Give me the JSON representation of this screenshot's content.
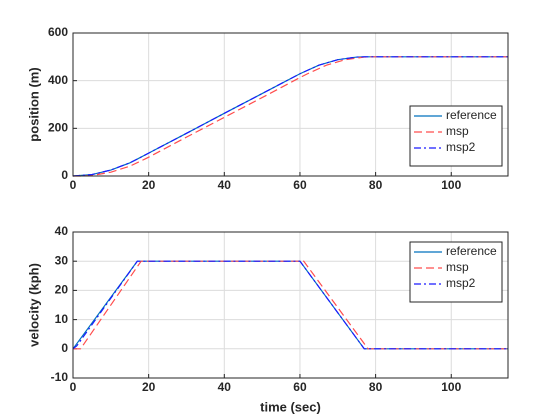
{
  "chart_data": [
    {
      "type": "line",
      "ylabel": "position (m)",
      "xlim": [
        0,
        115
      ],
      "ylim": [
        0,
        600
      ],
      "xticks": [
        0,
        20,
        40,
        60,
        80,
        100
      ],
      "yticks": [
        0,
        200,
        400,
        600
      ],
      "grid": true,
      "legend": "lower right",
      "series": [
        {
          "name": "reference",
          "color": "#0072bd",
          "style": "solid",
          "x": [
            0,
            5,
            10,
            15,
            17,
            20,
            30,
            40,
            50,
            60,
            65,
            70,
            75,
            77,
            115
          ],
          "values": [
            0,
            6,
            25,
            55,
            71,
            96,
            179,
            263,
            346,
            429,
            465,
            488,
            499,
            500,
            500
          ]
        },
        {
          "name": "msp",
          "color": "#ff4d4d",
          "style": "dashed",
          "x": [
            0,
            2,
            5,
            10,
            15,
            19,
            20,
            30,
            40,
            50,
            60,
            62,
            67,
            72,
            77,
            79,
            115
          ],
          "values": [
            0,
            0,
            2,
            16,
            41,
            71,
            79,
            163,
            246,
            329,
            413,
            429,
            465,
            488,
            499,
            500,
            500
          ]
        },
        {
          "name": "msp2",
          "color": "#1a1aff",
          "style": "dashdot",
          "x": [
            0,
            5,
            10,
            15,
            17,
            20,
            30,
            40,
            50,
            60,
            65,
            70,
            75,
            77,
            115
          ],
          "values": [
            0,
            6,
            25,
            55,
            71,
            96,
            179,
            263,
            346,
            429,
            465,
            488,
            499,
            500,
            500
          ]
        }
      ]
    },
    {
      "type": "line",
      "xlabel": "time (sec)",
      "ylabel": "velocity (kph)",
      "xlim": [
        0,
        115
      ],
      "ylim": [
        -10,
        40
      ],
      "xticks": [
        0,
        20,
        40,
        60,
        80,
        100
      ],
      "yticks": [
        -10,
        0,
        10,
        20,
        30,
        40
      ],
      "grid": true,
      "legend": "upper right",
      "series": [
        {
          "name": "reference",
          "color": "#0072bd",
          "style": "solid",
          "x": [
            0,
            17,
            60,
            77,
            115
          ],
          "values": [
            0,
            30,
            30,
            0,
            0
          ]
        },
        {
          "name": "msp",
          "color": "#ff4d4d",
          "style": "dashed",
          "x": [
            0,
            2,
            18,
            61,
            78,
            115
          ],
          "values": [
            0,
            0,
            30,
            30,
            0,
            0
          ]
        },
        {
          "name": "msp2",
          "color": "#1a1aff",
          "style": "dashdot",
          "x": [
            0,
            1,
            17,
            60,
            77,
            115
          ],
          "values": [
            0,
            1,
            30,
            30,
            0,
            0
          ]
        }
      ]
    }
  ]
}
